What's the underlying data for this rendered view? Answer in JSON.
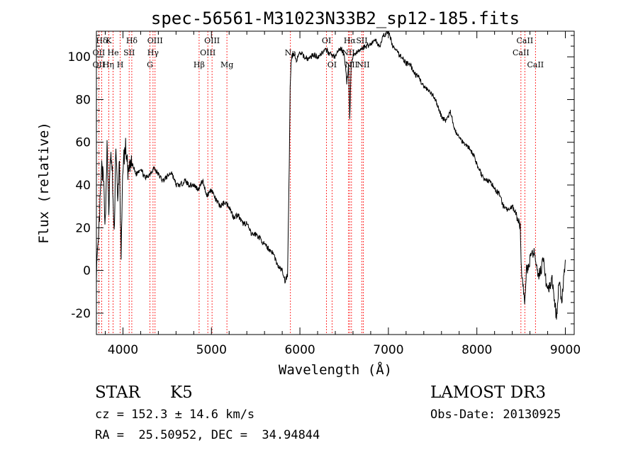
{
  "chart_data": {
    "type": "line",
    "title": "spec-56561-M31023N33B2_sp12-185.fits",
    "xlabel": "Wavelength (Å)",
    "ylabel": "Flux (relative)",
    "xlim": [
      3700,
      9100
    ],
    "ylim": [
      -30,
      112
    ],
    "xticks": [
      4000,
      5000,
      6000,
      7000,
      8000,
      9000
    ],
    "yticks": [
      -20,
      0,
      20,
      40,
      60,
      80,
      100
    ],
    "grid": false,
    "series": [
      {
        "x": [
          3700,
          3720,
          3740,
          3760,
          3780,
          3800,
          3820,
          3840,
          3860,
          3880,
          3900,
          3920,
          3940,
          3960,
          3980,
          4000,
          4030,
          4060,
          4100,
          4150,
          4200,
          4250,
          4300,
          4350,
          4400,
          4450,
          4500,
          4550,
          4600,
          4650,
          4700,
          4750,
          4800,
          4850,
          4900,
          4950,
          5000,
          5050,
          5100,
          5150,
          5200,
          5250,
          5300,
          5350,
          5400,
          5450,
          5500,
          5550,
          5600,
          5650,
          5700,
          5750,
          5800,
          5830,
          5860,
          5880,
          5890,
          5900,
          5910,
          5930,
          5960,
          6000,
          6050,
          6100,
          6150,
          6200,
          6250,
          6300,
          6350,
          6400,
          6450,
          6500,
          6530,
          6550,
          6563,
          6580,
          6600,
          6650,
          6700,
          6750,
          6800,
          6850,
          6900,
          6950,
          7000,
          7050,
          7100,
          7150,
          7200,
          7250,
          7300,
          7350,
          7400,
          7450,
          7500,
          7550,
          7600,
          7650,
          7700,
          7750,
          7800,
          7850,
          7900,
          7950,
          8000,
          8050,
          8100,
          8150,
          8200,
          8250,
          8300,
          8350,
          8400,
          8450,
          8490,
          8500,
          8520,
          8540,
          8560,
          8600,
          8650,
          8700,
          8750,
          8800,
          8850,
          8900,
          8930,
          8960,
          9000
        ],
        "y": [
          0,
          10,
          30,
          48,
          42,
          22,
          58,
          28,
          55,
          45,
          15,
          60,
          30,
          52,
          5,
          50,
          58,
          45,
          50,
          45,
          48,
          43,
          45,
          48,
          45,
          42,
          44,
          46,
          40,
          40,
          42,
          40,
          40,
          38,
          42,
          35,
          38,
          33,
          30,
          32,
          30,
          25,
          26,
          22,
          22,
          17,
          17,
          15,
          12,
          10,
          8,
          2,
          0,
          -5,
          -2,
          50,
          85,
          98,
          100,
          102,
          98,
          102,
          100,
          99,
          101,
          100,
          102,
          103,
          101,
          100,
          104,
          102,
          88,
          96,
          70,
          96,
          101,
          102,
          104,
          105,
          106,
          108,
          105,
          110,
          112,
          105,
          102,
          100,
          97,
          96,
          92,
          90,
          86,
          84,
          82,
          78,
          72,
          70,
          74,
          66,
          62,
          60,
          58,
          55,
          50,
          45,
          42,
          42,
          38,
          36,
          30,
          28,
          30,
          26,
          20,
          2,
          -5,
          -18,
          0,
          5,
          8,
          -2,
          4,
          -10,
          -5,
          -22,
          -5,
          -15,
          5
        ],
        "color": "#000000"
      }
    ],
    "lines": {
      "color": "#ff0000",
      "items": [
        {
          "label": "Hδ",
          "x": 3760,
          "row": 1
        },
        {
          "label": "K",
          "x": 3840,
          "row": 1
        },
        {
          "label": "Hδ",
          "x": 4100,
          "row": 1
        },
        {
          "label": "OIII",
          "x": 4363,
          "row": 1
        },
        {
          "label": "OIII",
          "x": 5007,
          "row": 1
        },
        {
          "label": "OI",
          "x": 6300,
          "row": 1
        },
        {
          "label": "Hα",
          "x": 6563,
          "row": 1
        },
        {
          "label": "SII",
          "x": 6700,
          "row": 1
        },
        {
          "label": "CaII",
          "x": 8542,
          "row": 1
        },
        {
          "label": "OII",
          "x": 3727,
          "row": 2
        },
        {
          "label": "He",
          "x": 3889,
          "row": 2
        },
        {
          "label": "SII",
          "x": 4070,
          "row": 2
        },
        {
          "label": "Hγ",
          "x": 4340,
          "row": 2
        },
        {
          "label": "OIII",
          "x": 4959,
          "row": 2
        },
        {
          "label": "Na",
          "x": 5893,
          "row": 2
        },
        {
          "label": "NII",
          "x": 6548,
          "row": 2
        },
        {
          "label": "CaII",
          "x": 8498,
          "row": 2
        },
        {
          "label": "OII",
          "x": 3727,
          "row": 3
        },
        {
          "label": "Hη",
          "x": 3835,
          "row": 3
        },
        {
          "label": "H",
          "x": 3969,
          "row": 3
        },
        {
          "label": "G",
          "x": 4305,
          "row": 3
        },
        {
          "label": "Hβ",
          "x": 4861,
          "row": 3
        },
        {
          "label": "Mg",
          "x": 5175,
          "row": 3
        },
        {
          "label": "OI",
          "x": 6363,
          "row": 3
        },
        {
          "label": "NII",
          "x": 6583,
          "row": 3
        },
        {
          "label": "NII",
          "x": 6716,
          "row": 3
        },
        {
          "label": "CaII",
          "x": 8662,
          "row": 3
        }
      ]
    }
  },
  "info": {
    "class": "STAR",
    "subclass": "K5",
    "survey": "LAMOST DR3",
    "cz": "cz = 152.3 ± 14.6 km/s",
    "obs_date": "Obs-Date: 20130925",
    "radec": "RA =  25.50952, DEC =  34.94844"
  }
}
